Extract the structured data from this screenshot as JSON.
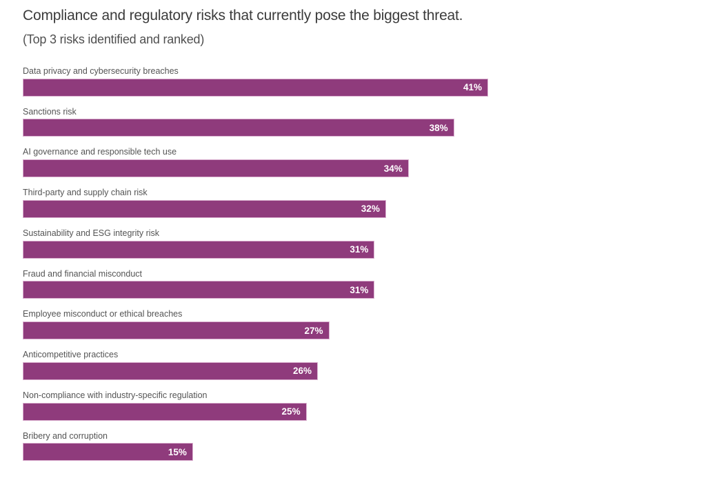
{
  "page": {
    "title": "Compliance and regulatory risks that currently pose the biggest threat.",
    "subtitle": "(Top 3 risks identified and ranked)"
  },
  "chart_data": {
    "type": "bar",
    "orientation": "horizontal",
    "title": "Compliance and regulatory risks that currently pose the biggest threat.",
    "subtitle": "(Top 3 risks identified and ranked)",
    "categories": [
      "Data privacy and cybersecurity breaches",
      "Sanctions risk",
      "AI governance and responsible tech use",
      "Third-party and supply chain risk",
      "Sustainability and ESG integrity risk",
      "Fraud and financial misconduct",
      "Employee misconduct or ethical breaches",
      "Anticompetitive practices",
      "Non-compliance with industry-specific regulation",
      "Bribery and corruption"
    ],
    "values": [
      41,
      38,
      34,
      32,
      31,
      31,
      27,
      26,
      25,
      15
    ],
    "value_suffix": "%",
    "xlabel": "",
    "ylabel": "",
    "xlim": [
      0,
      41
    ],
    "grid": false,
    "legend": "none",
    "value_labels": "inside-end",
    "bar_color": "#8f3b7c",
    "bar_border_color": "#d9aece",
    "value_label_color": "#ffffff",
    "category_label_color": "#545454",
    "title_color": "#3b3b3b"
  }
}
